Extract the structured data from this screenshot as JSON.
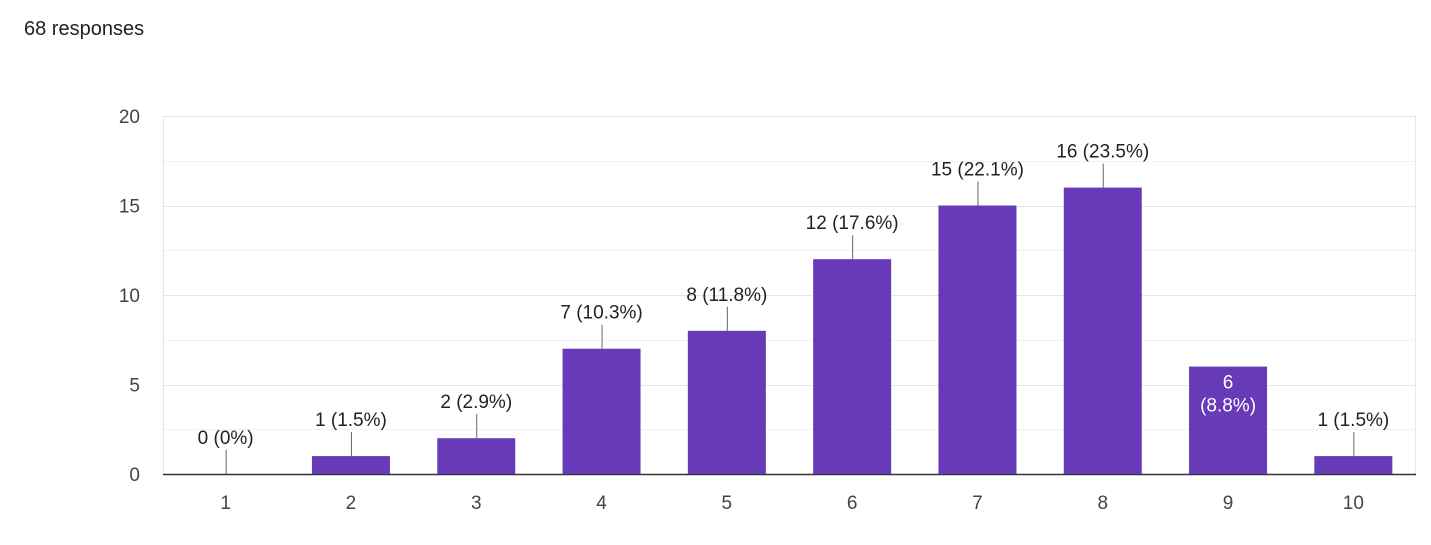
{
  "summary": "68 responses",
  "chart_data": {
    "type": "bar",
    "categories": [
      "1",
      "2",
      "3",
      "4",
      "5",
      "6",
      "7",
      "8",
      "9",
      "10"
    ],
    "values": [
      0,
      1,
      2,
      7,
      8,
      12,
      15,
      16,
      6,
      1
    ],
    "percents": [
      "0%",
      "1.5%",
      "2.9%",
      "10.3%",
      "11.8%",
      "17.6%",
      "22.1%",
      "23.5%",
      "8.8%",
      "1.5%"
    ],
    "data_labels": [
      "0 (0%)",
      "1 (1.5%)",
      "2 (2.9%)",
      "7 (10.3%)",
      "8 (11.8%)",
      "12 (17.6%)",
      "15 (22.1%)",
      "16 (23.5%)",
      "6 (8.8%)",
      "1 (1.5%)"
    ],
    "yticks": [
      0,
      5,
      10,
      15,
      20
    ],
    "ylim": [
      0,
      20
    ],
    "grid": true,
    "bar_color": "#673ab7",
    "title": "",
    "xlabel": "",
    "ylabel": ""
  }
}
